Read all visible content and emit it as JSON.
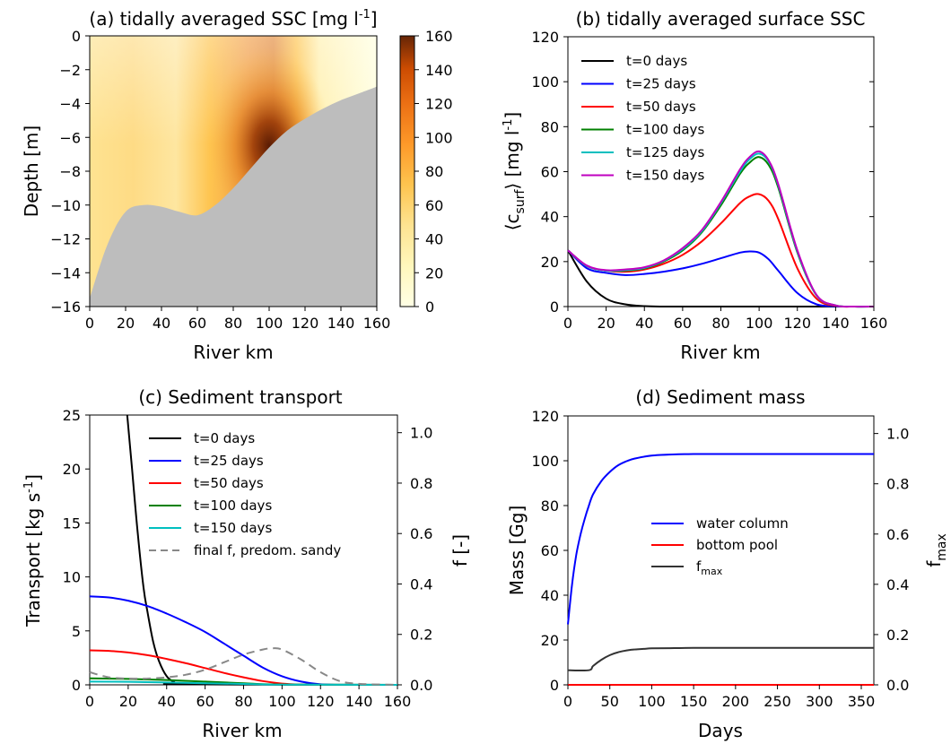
{
  "chart_data": [
    {
      "id": "a",
      "type": "heatmap",
      "title": "(a) tidally averaged SSC [mg l",
      "title_sup": "-1",
      "title_end": "]",
      "xlabel": "River km",
      "ylabel": "Depth [m]",
      "xlim": [
        0,
        160
      ],
      "ylim": [
        -16,
        0
      ],
      "xticks": [
        "0",
        "20",
        "40",
        "60",
        "80",
        "100",
        "120",
        "140",
        "160"
      ],
      "yticks": [
        "0",
        "−2",
        "−4",
        "−6",
        "−8",
        "−10",
        "−12",
        "−14",
        "−16"
      ],
      "colorbar": {
        "range": [
          0,
          160
        ],
        "ticks": [
          "0",
          "20",
          "40",
          "60",
          "80",
          "100",
          "120",
          "140",
          "160"
        ],
        "colormap": "YlOrBr"
      },
      "bed_profile": {
        "x": [
          0,
          10,
          20,
          30,
          40,
          50,
          60,
          70,
          80,
          90,
          100,
          110,
          120,
          130,
          140,
          150,
          160
        ],
        "depth": [
          -15.5,
          -12.3,
          -10.4,
          -10.0,
          -10.1,
          -10.4,
          -10.6,
          -10.0,
          -9.0,
          -7.8,
          -6.6,
          -5.6,
          -4.9,
          -4.3,
          -3.8,
          -3.4,
          -3.0
        ]
      },
      "ssc_peak": {
        "x": 100,
        "depth": -6.5,
        "value": 160
      },
      "bed_color": "#bdbdbd"
    },
    {
      "id": "b",
      "type": "line",
      "title": "(b) tidally averaged surface SSC",
      "xlabel": "River km",
      "ylabel_main": "⟨c",
      "ylabel_sub": "surf",
      "ylabel_rest": "⟩ [mg l",
      "ylabel_sup": "-1",
      "ylabel_end": "]",
      "xlim": [
        0,
        160
      ],
      "ylim": [
        0,
        120
      ],
      "xticks": [
        "0",
        "20",
        "40",
        "60",
        "80",
        "100",
        "120",
        "140",
        "160"
      ],
      "yticks": [
        "0",
        "20",
        "40",
        "60",
        "80",
        "100",
        "120"
      ],
      "x": [
        0,
        10,
        20,
        30,
        40,
        50,
        60,
        70,
        80,
        90,
        95,
        100,
        105,
        110,
        120,
        130,
        140,
        150,
        160
      ],
      "series": [
        {
          "name": "t=0 days",
          "color": "#000000",
          "values": [
            25,
            11,
            3.5,
            1,
            0.2,
            0,
            0,
            0,
            0,
            0,
            0,
            0,
            0,
            0,
            0,
            0,
            0,
            0,
            0
          ]
        },
        {
          "name": "t=25 days",
          "color": "#0000ff",
          "values": [
            25,
            17,
            15,
            14,
            14.5,
            15.5,
            17,
            19,
            21.5,
            24,
            24.5,
            24,
            21,
            16,
            6,
            1,
            0.1,
            0,
            0
          ]
        },
        {
          "name": "t=50 days",
          "color": "#ff0000",
          "values": [
            25,
            18,
            16,
            15.5,
            16.5,
            19,
            23,
            29,
            37,
            46,
            49,
            50,
            47,
            39,
            17,
            3.5,
            0.3,
            0,
            0
          ]
        },
        {
          "name": "t=100 days",
          "color": "#008000",
          "values": [
            25,
            18,
            16,
            16,
            17,
            20,
            25,
            33,
            45,
            59,
            64,
            66.5,
            63,
            53,
            24,
            5,
            0.5,
            0,
            0
          ]
        },
        {
          "name": "t=125 days",
          "color": "#00bfbf",
          "values": [
            25,
            18,
            16,
            16.2,
            17.2,
            20.3,
            25.5,
            33.5,
            46,
            60,
            65.5,
            68,
            64.5,
            54,
            24.5,
            5,
            0.5,
            0,
            0
          ]
        },
        {
          "name": "t=150 days",
          "color": "#bf00bf",
          "values": [
            25,
            18.2,
            16.2,
            16.5,
            17.5,
            20.5,
            26,
            34,
            46.5,
            61,
            66.5,
            69,
            65,
            54.5,
            25,
            5.2,
            0.5,
            0,
            0
          ]
        }
      ]
    },
    {
      "id": "c",
      "type": "line",
      "title": "(c) Sediment transport",
      "xlabel": "River km",
      "ylabel_main": "Transport [kg s",
      "ylabel_sup": "-1",
      "ylabel_end": "]",
      "y2label": "f [-]",
      "xlim": [
        0,
        160
      ],
      "ylim": [
        0,
        25
      ],
      "y2lim": [
        0,
        1.07
      ],
      "xticks": [
        "0",
        "20",
        "40",
        "60",
        "80",
        "100",
        "120",
        "140",
        "160"
      ],
      "yticks": [
        "0",
        "5",
        "10",
        "15",
        "20",
        "25"
      ],
      "y2ticks": [
        "0.0",
        "0.2",
        "0.4",
        "0.6",
        "0.8",
        "1.0"
      ],
      "series": [
        {
          "name": "t=0 days",
          "color": "#000000",
          "x": [
            19.5,
            22,
            25,
            28,
            30,
            33,
            36,
            40,
            44,
            48,
            160
          ],
          "values": [
            25,
            20,
            14,
            9,
            6.8,
            4,
            2.2,
            0.8,
            0.25,
            0.05,
            0
          ]
        },
        {
          "name": "t=25 days",
          "color": "#0000ff",
          "x": [
            0,
            10,
            20,
            30,
            40,
            50,
            60,
            70,
            80,
            90,
            100,
            110,
            120,
            130,
            160
          ],
          "values": [
            8.2,
            8.1,
            7.8,
            7.3,
            6.6,
            5.8,
            4.9,
            3.8,
            2.7,
            1.6,
            0.8,
            0.3,
            0.05,
            0,
            0
          ]
        },
        {
          "name": "t=50 days",
          "color": "#ff0000",
          "x": [
            0,
            10,
            20,
            30,
            40,
            50,
            60,
            70,
            80,
            90,
            100,
            110,
            120,
            160
          ],
          "values": [
            3.2,
            3.15,
            3.0,
            2.75,
            2.4,
            2.0,
            1.55,
            1.1,
            0.7,
            0.35,
            0.12,
            0.02,
            0,
            0
          ]
        },
        {
          "name": "t=100 days",
          "color": "#008000",
          "x": [
            0,
            20,
            40,
            60,
            80,
            100,
            160
          ],
          "values": [
            0.6,
            0.55,
            0.45,
            0.3,
            0.15,
            0.03,
            0
          ]
        },
        {
          "name": "t=150 days",
          "color": "#00bfbf",
          "x": [
            0,
            20,
            40,
            60,
            80,
            100,
            160
          ],
          "values": [
            0.3,
            0.28,
            0.22,
            0.15,
            0.08,
            0.02,
            0
          ]
        },
        {
          "name": "final f, predom. sandy",
          "color": "#888888",
          "dashed": true,
          "axis": "right",
          "x": [
            0,
            10,
            20,
            30,
            40,
            50,
            60,
            70,
            80,
            90,
            95,
            100,
            110,
            120,
            130,
            140,
            160
          ],
          "values": [
            0.05,
            0.03,
            0.025,
            0.025,
            0.03,
            0.04,
            0.06,
            0.09,
            0.12,
            0.14,
            0.145,
            0.14,
            0.1,
            0.05,
            0.015,
            0.004,
            0
          ]
        }
      ]
    },
    {
      "id": "d",
      "type": "line",
      "title": "(d) Sediment mass",
      "xlabel": "Days",
      "ylabel_main": "Mass [Gg]",
      "y2label_main": "f",
      "y2label_sub": "max",
      "xlim": [
        0,
        365
      ],
      "ylim": [
        0,
        120
      ],
      "y2lim": [
        0,
        1.07
      ],
      "xticks": [
        "0",
        "50",
        "100",
        "150",
        "200",
        "250",
        "300",
        "350"
      ],
      "yticks": [
        "0",
        "20",
        "40",
        "60",
        "80",
        "100",
        "120"
      ],
      "y2ticks": [
        "0.0",
        "0.2",
        "0.4",
        "0.6",
        "0.8",
        "1.0"
      ],
      "legend_extra_sub": "max",
      "series": [
        {
          "name": "water column",
          "color": "#0000ff",
          "x": [
            0,
            5,
            10,
            15,
            20,
            25,
            30,
            40,
            50,
            60,
            70,
            80,
            100,
            125,
            150,
            200,
            250,
            300,
            365
          ],
          "values": [
            27,
            45,
            58,
            67,
            74,
            80,
            85,
            91,
            95,
            98,
            99.8,
            101,
            102.3,
            102.8,
            103,
            103,
            103,
            103,
            103
          ]
        },
        {
          "name": "bottom pool",
          "color": "#ff0000",
          "x": [
            0,
            365
          ],
          "values": [
            0,
            0
          ]
        },
        {
          "name": "f",
          "name_sub": "max",
          "color": "#333333",
          "axis": "right",
          "x": [
            0,
            25,
            30,
            40,
            50,
            60,
            70,
            80,
            90,
            100,
            120,
            150,
            200,
            365
          ],
          "values": [
            0.058,
            0.058,
            0.075,
            0.1,
            0.118,
            0.13,
            0.137,
            0.141,
            0.143,
            0.145,
            0.146,
            0.147,
            0.147,
            0.147
          ]
        }
      ]
    }
  ]
}
